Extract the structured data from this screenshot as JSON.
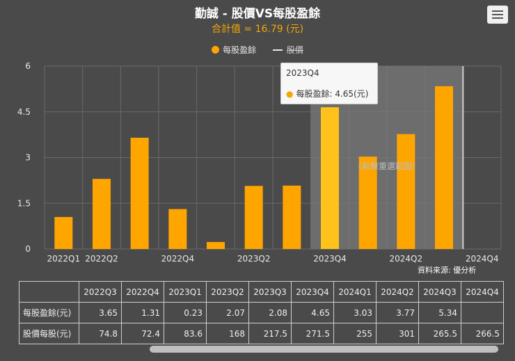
{
  "header": {
    "title": "勤誠 - 股價VS每股盈餘",
    "subtitle": "合計值 = 16.79 (元)"
  },
  "legend": {
    "eps": "每股盈餘",
    "price": "股價"
  },
  "tooltip": {
    "period": "2023Q4",
    "label": "每股盈餘: 4.65(元)"
  },
  "watermark": "(點擊重選範圍)",
  "source": "資料來源: 優分析",
  "colors": {
    "bar": "#ffa500",
    "background": "#4a4a4a",
    "subtitle": "#f5a700"
  },
  "chart_data": {
    "type": "bar",
    "title": "勤誠 - 股價VS每股盈餘",
    "categories": [
      "2022Q1",
      "2022Q2",
      "2022Q3",
      "2022Q4",
      "2023Q1",
      "2023Q2",
      "2023Q3",
      "2023Q4",
      "2024Q1",
      "2024Q2",
      "2024Q3",
      "2024Q4"
    ],
    "series": [
      {
        "name": "每股盈餘",
        "values": [
          1.05,
          2.3,
          3.65,
          1.31,
          0.23,
          2.07,
          2.08,
          4.65,
          3.03,
          3.77,
          5.34,
          null
        ]
      }
    ],
    "shown_tick_labels": [
      "2022Q1",
      "2022Q2",
      "2022Q4",
      "2023Q2",
      "2023Q4",
      "2024Q2",
      "2024Q4"
    ],
    "yticks": [
      "0",
      "1.5",
      "3",
      "4.5",
      "6"
    ],
    "ylim": [
      0,
      6
    ],
    "highlight_range": [
      "2023Q4",
      "2024Q3"
    ]
  },
  "table": {
    "headers": [
      "2022Q3",
      "2022Q4",
      "2023Q1",
      "2023Q2",
      "2023Q3",
      "2023Q4",
      "2024Q1",
      "2024Q2",
      "2024Q3",
      "2024Q4"
    ],
    "rows": [
      {
        "label": "每股盈餘(元)",
        "cells": [
          "3.65",
          "1.31",
          "0.23",
          "2.07",
          "2.08",
          "4.65",
          "3.03",
          "3.77",
          "5.34",
          ""
        ]
      },
      {
        "label": "股價每股(元)",
        "cells": [
          "74.8",
          "72.4",
          "83.6",
          "168",
          "217.5",
          "271.5",
          "255",
          "301",
          "265.5",
          "266.5"
        ]
      }
    ]
  }
}
